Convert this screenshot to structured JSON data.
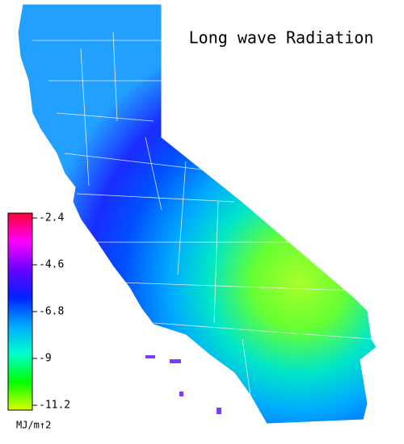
{
  "title": "Long wave Radiation",
  "colorbar": {
    "unit": "MJ/m↑2",
    "lim": [
      -2.4,
      -11.2
    ],
    "ticks": [
      -2.4,
      -4.6,
      -6.8,
      -9.0,
      -11.2
    ],
    "colors": [
      "#ff0033",
      "#ff00ff",
      "#6a00ff",
      "#0022ff",
      "#00aaff",
      "#00ffcc",
      "#00ff00",
      "#ddff00"
    ]
  }
}
